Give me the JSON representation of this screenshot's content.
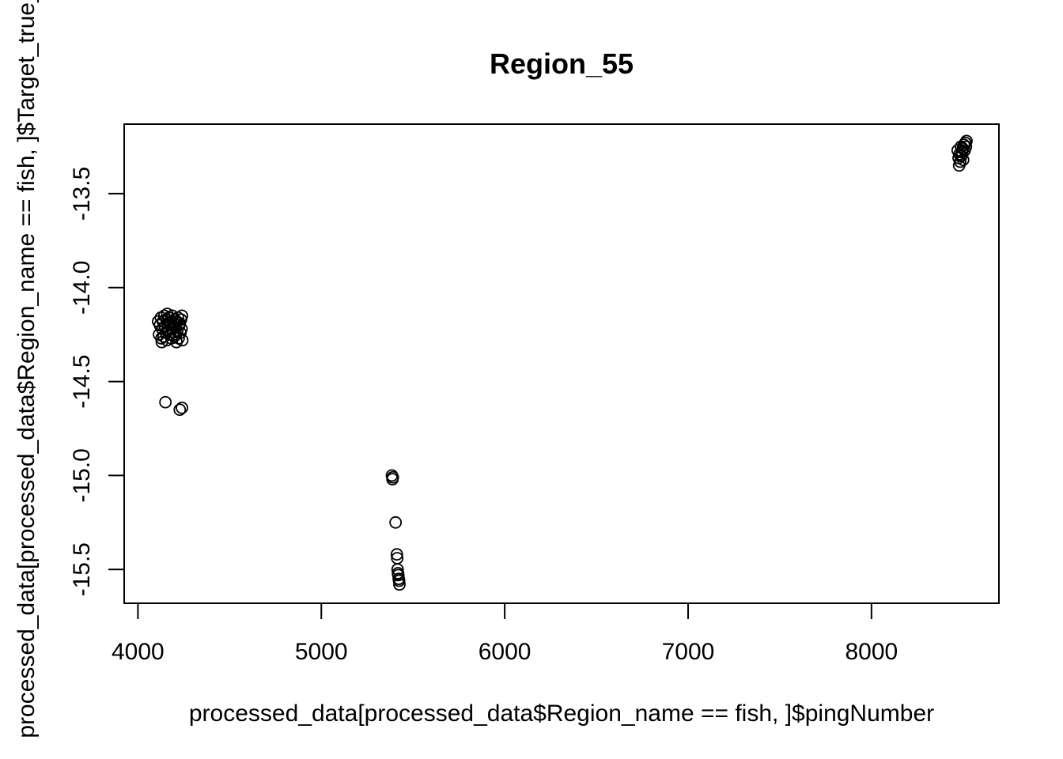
{
  "chart_data": {
    "type": "scatter",
    "title": "Region_55",
    "xlabel": "processed_data[processed_data$Region_name == fish, ]$pingNumber",
    "ylabel": "processed_data[processed_data$Region_name == fish, ]$Target_true_",
    "xlim": [
      3925,
      8695
    ],
    "ylim": [
      -15.68,
      -13.13
    ],
    "x_ticks": [
      4000,
      5000,
      6000,
      7000,
      8000
    ],
    "x_tick_labels": [
      "4000",
      "5000",
      "6000",
      "7000",
      "8000"
    ],
    "y_ticks": [
      -13.5,
      -14.0,
      -14.5,
      -15.0,
      -15.5
    ],
    "y_tick_labels": [
      "-13.5",
      "-14.0",
      "-14.5",
      "-15.0",
      "-15.5"
    ],
    "grid": false,
    "legend": "none",
    "point_color": "#000000",
    "points": [
      {
        "x": 4110,
        "y": -14.18
      },
      {
        "x": 4115,
        "y": -14.25
      },
      {
        "x": 4120,
        "y": -14.2
      },
      {
        "x": 4125,
        "y": -14.16
      },
      {
        "x": 4128,
        "y": -14.27
      },
      {
        "x": 4132,
        "y": -14.22
      },
      {
        "x": 4136,
        "y": -14.18
      },
      {
        "x": 4140,
        "y": -14.26
      },
      {
        "x": 4144,
        "y": -14.15
      },
      {
        "x": 4148,
        "y": -14.21
      },
      {
        "x": 4152,
        "y": -14.24
      },
      {
        "x": 4155,
        "y": -14.17
      },
      {
        "x": 4158,
        "y": -14.28
      },
      {
        "x": 4162,
        "y": -14.19
      },
      {
        "x": 4165,
        "y": -14.23
      },
      {
        "x": 4168,
        "y": -14.16
      },
      {
        "x": 4172,
        "y": -14.25
      },
      {
        "x": 4175,
        "y": -14.2
      },
      {
        "x": 4178,
        "y": -14.18
      },
      {
        "x": 4182,
        "y": -14.27
      },
      {
        "x": 4185,
        "y": -14.22
      },
      {
        "x": 4188,
        "y": -14.15
      },
      {
        "x": 4192,
        "y": -14.24
      },
      {
        "x": 4195,
        "y": -14.19
      },
      {
        "x": 4198,
        "y": -14.26
      },
      {
        "x": 4202,
        "y": -14.17
      },
      {
        "x": 4205,
        "y": -14.21
      },
      {
        "x": 4208,
        "y": -14.25
      },
      {
        "x": 4212,
        "y": -14.18
      },
      {
        "x": 4215,
        "y": -14.23
      },
      {
        "x": 4218,
        "y": -14.16
      },
      {
        "x": 4222,
        "y": -14.27
      },
      {
        "x": 4225,
        "y": -14.2
      },
      {
        "x": 4228,
        "y": -14.19
      },
      {
        "x": 4232,
        "y": -14.24
      },
      {
        "x": 4235,
        "y": -14.17
      },
      {
        "x": 4238,
        "y": -14.22
      },
      {
        "x": 4240,
        "y": -14.15
      },
      {
        "x": 4242,
        "y": -14.28
      },
      {
        "x": 4130,
        "y": -14.29
      },
      {
        "x": 4160,
        "y": -14.14
      },
      {
        "x": 4210,
        "y": -14.29
      },
      {
        "x": 4150,
        "y": -14.61
      },
      {
        "x": 4228,
        "y": -14.65
      },
      {
        "x": 4240,
        "y": -14.64
      },
      {
        "x": 5385,
        "y": -15.0
      },
      {
        "x": 5388,
        "y": -15.02
      },
      {
        "x": 5390,
        "y": -15.01
      },
      {
        "x": 5405,
        "y": -15.25
      },
      {
        "x": 5412,
        "y": -15.42
      },
      {
        "x": 5414,
        "y": -15.44
      },
      {
        "x": 5416,
        "y": -15.5
      },
      {
        "x": 5418,
        "y": -15.52
      },
      {
        "x": 5420,
        "y": -15.53
      },
      {
        "x": 5422,
        "y": -15.55
      },
      {
        "x": 5424,
        "y": -15.56
      },
      {
        "x": 5426,
        "y": -15.58
      },
      {
        "x": 8470,
        "y": -13.27
      },
      {
        "x": 8475,
        "y": -13.31
      },
      {
        "x": 8478,
        "y": -13.35
      },
      {
        "x": 8480,
        "y": -13.29
      },
      {
        "x": 8484,
        "y": -13.33
      },
      {
        "x": 8488,
        "y": -13.25
      },
      {
        "x": 8490,
        "y": -13.3
      },
      {
        "x": 8494,
        "y": -13.28
      },
      {
        "x": 8498,
        "y": -13.26
      },
      {
        "x": 8500,
        "y": -13.32
      },
      {
        "x": 8504,
        "y": -13.24
      },
      {
        "x": 8508,
        "y": -13.27
      },
      {
        "x": 8512,
        "y": -13.23
      },
      {
        "x": 8515,
        "y": -13.25
      },
      {
        "x": 8518,
        "y": -13.22
      }
    ]
  }
}
